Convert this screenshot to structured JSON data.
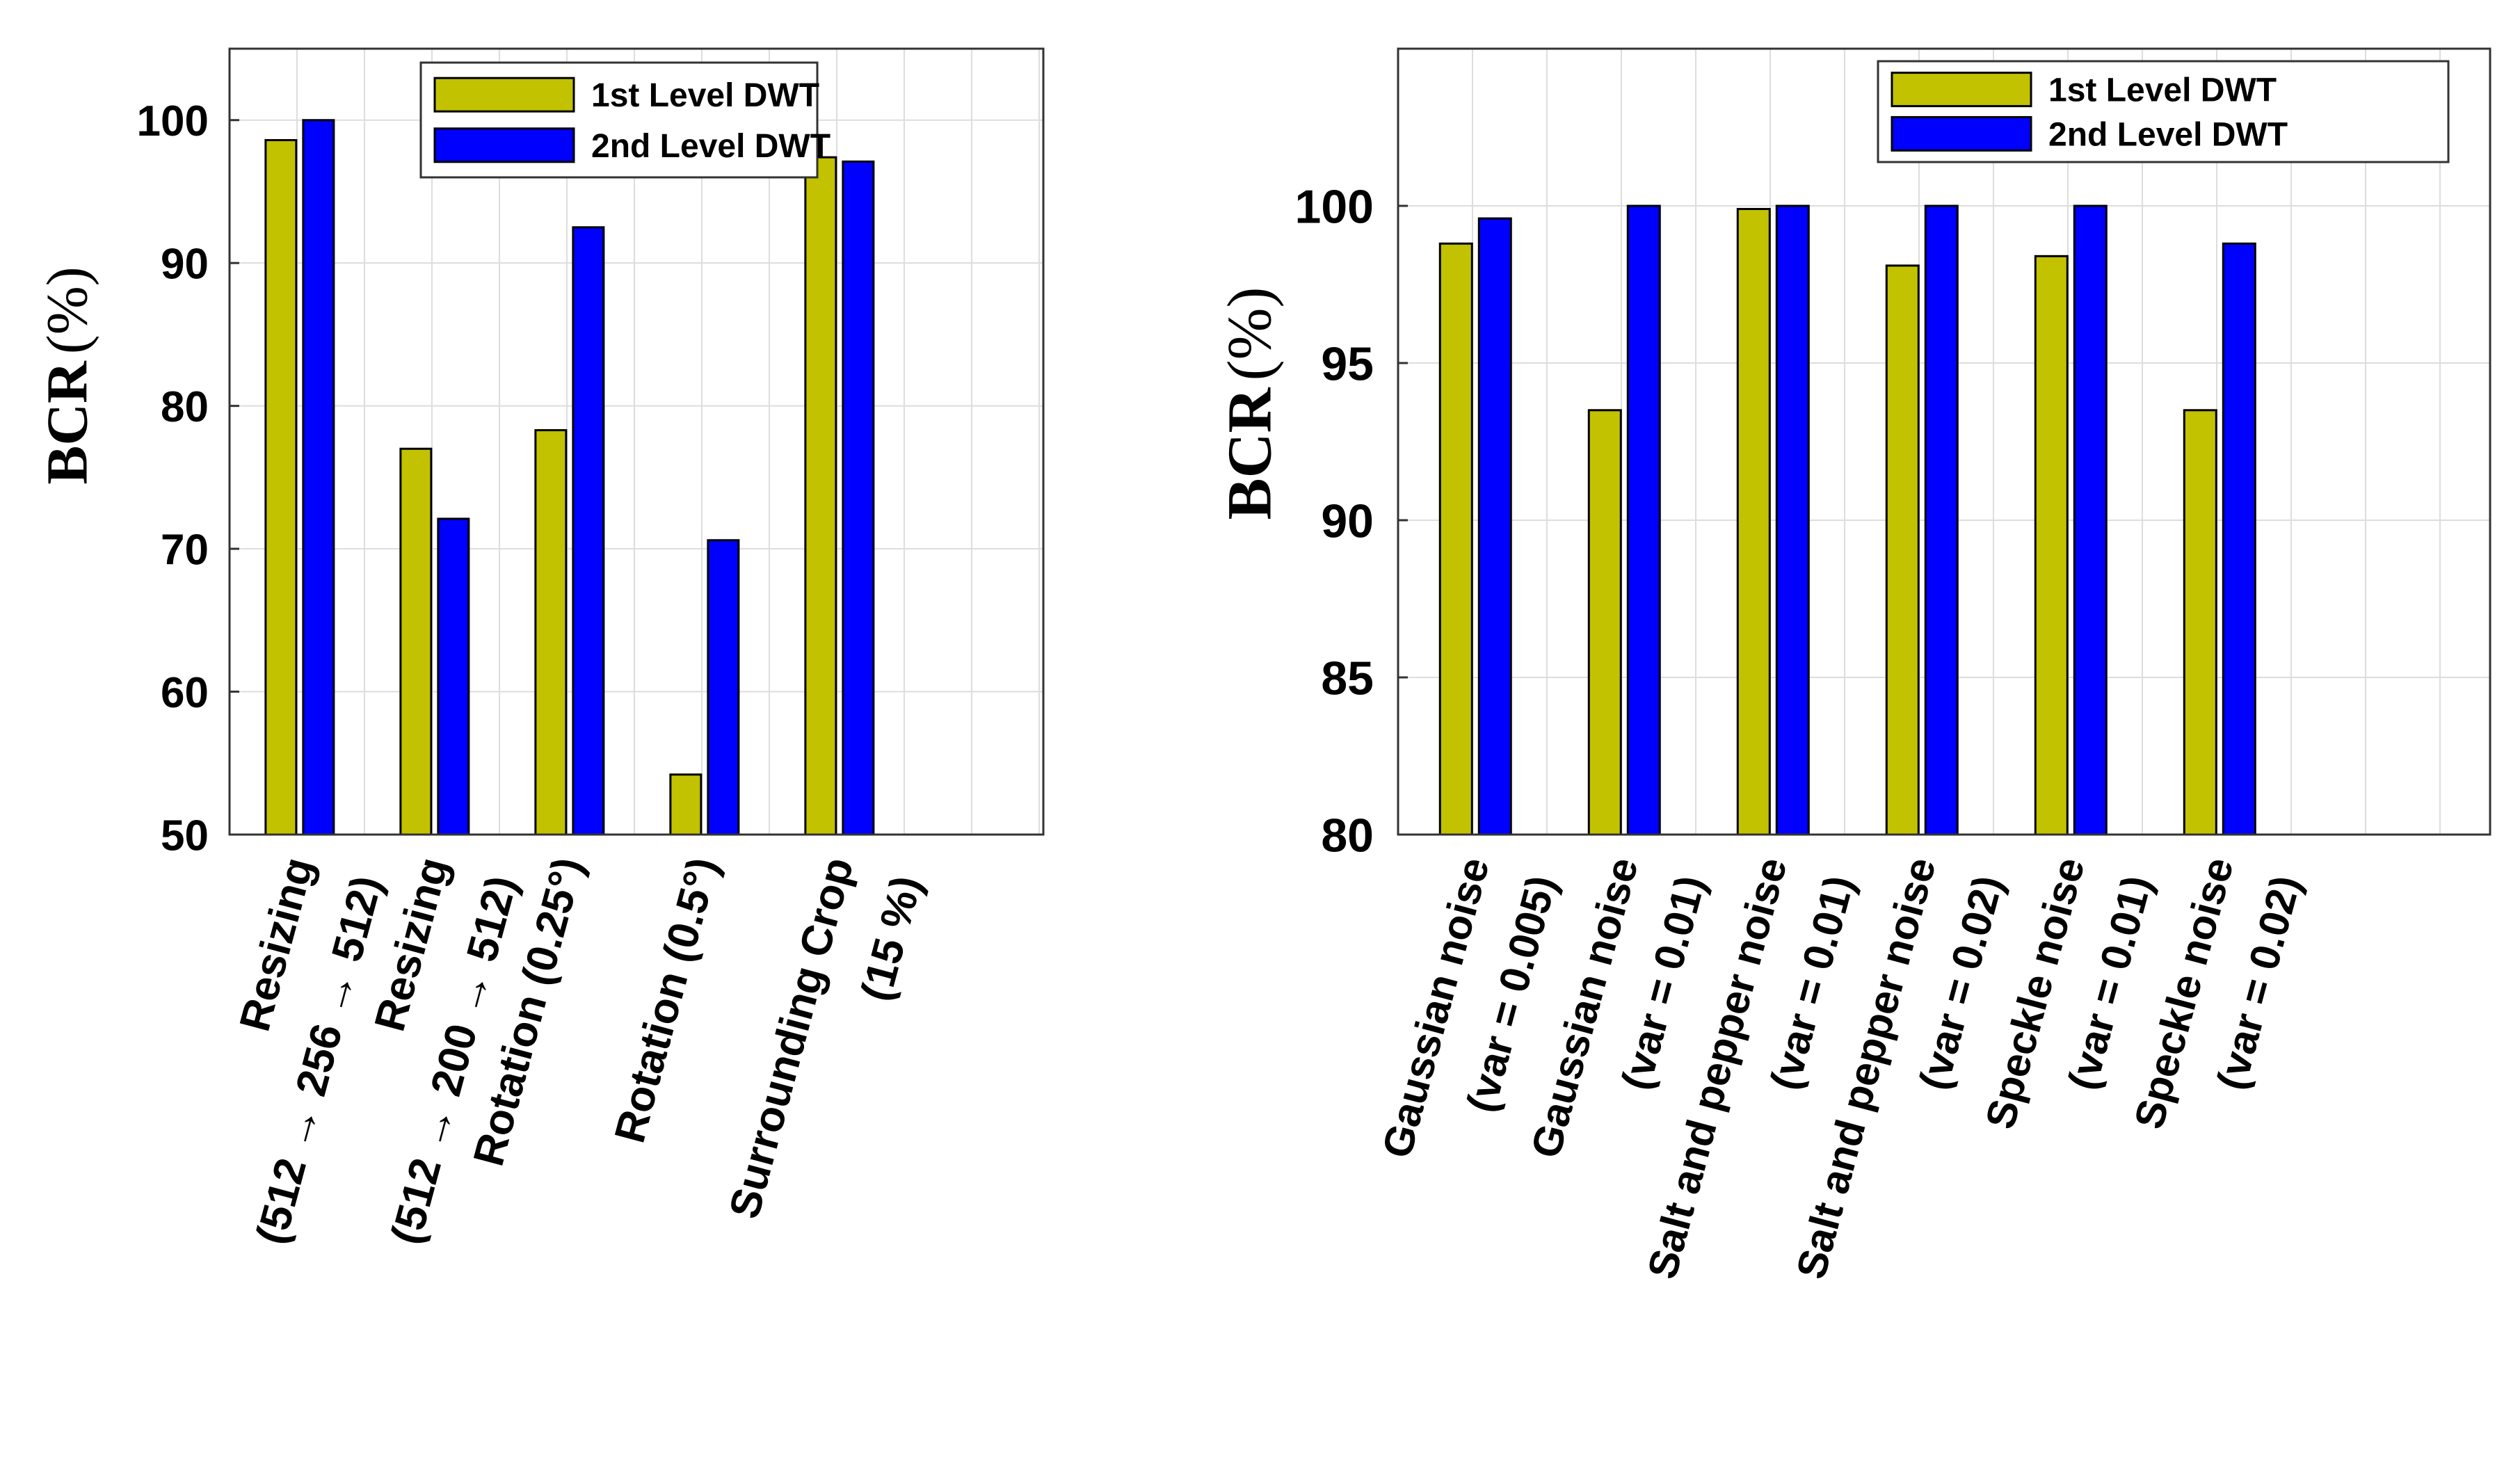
{
  "chart_data": [
    {
      "type": "bar",
      "title": "",
      "xlabel": "",
      "ylabel": "BCR",
      "ylabel_unit": "(%)",
      "ylim": [
        50,
        105
      ],
      "yticks": [
        50,
        60,
        70,
        80,
        90,
        100
      ],
      "grid": true,
      "legend_position": "top-right",
      "categories": [
        [
          "Resizing",
          "(512 → 256 → 512)"
        ],
        [
          "Resizing",
          "(512 → 200 → 512)"
        ],
        [
          "Rotation (0.25°)"
        ],
        [
          "Rotation (0.5°)"
        ],
        [
          "Surrounding Crop",
          "(15 %)"
        ]
      ],
      "series": [
        {
          "name": "1st Level DWT",
          "color": "#c2c200",
          "values": [
            98.6,
            77.0,
            78.3,
            54.2,
            97.4
          ]
        },
        {
          "name": "2nd Level DWT",
          "color": "#0000ff",
          "values": [
            100.0,
            72.1,
            92.5,
            70.6,
            97.1
          ]
        }
      ]
    },
    {
      "type": "bar",
      "title": "",
      "xlabel": "",
      "ylabel": "BCR",
      "ylabel_unit": "(%)",
      "ylim": [
        80,
        105
      ],
      "yticks": [
        80,
        85,
        90,
        95,
        100
      ],
      "grid": true,
      "legend_position": "top-right",
      "categories": [
        [
          "Gaussian noise",
          "(var = 0.005)"
        ],
        [
          "Gaussian noise",
          "(var = 0.01)"
        ],
        [
          "Salt and pepper noise",
          "(var = 0.01)"
        ],
        [
          "Salt and pepper noise",
          "(var = 0.02)"
        ],
        [
          "Speckle noise",
          "(var = 0.01)"
        ],
        [
          "Speckle noise",
          "(var = 0.02)"
        ]
      ],
      "series": [
        {
          "name": "1st Level DWT",
          "color": "#c2c200",
          "values": [
            98.8,
            93.5,
            99.9,
            98.1,
            98.4,
            93.5
          ]
        },
        {
          "name": "2nd Level DWT",
          "color": "#0000ff",
          "values": [
            99.6,
            100.0,
            100.0,
            100.0,
            100.0,
            98.8
          ]
        }
      ]
    }
  ]
}
